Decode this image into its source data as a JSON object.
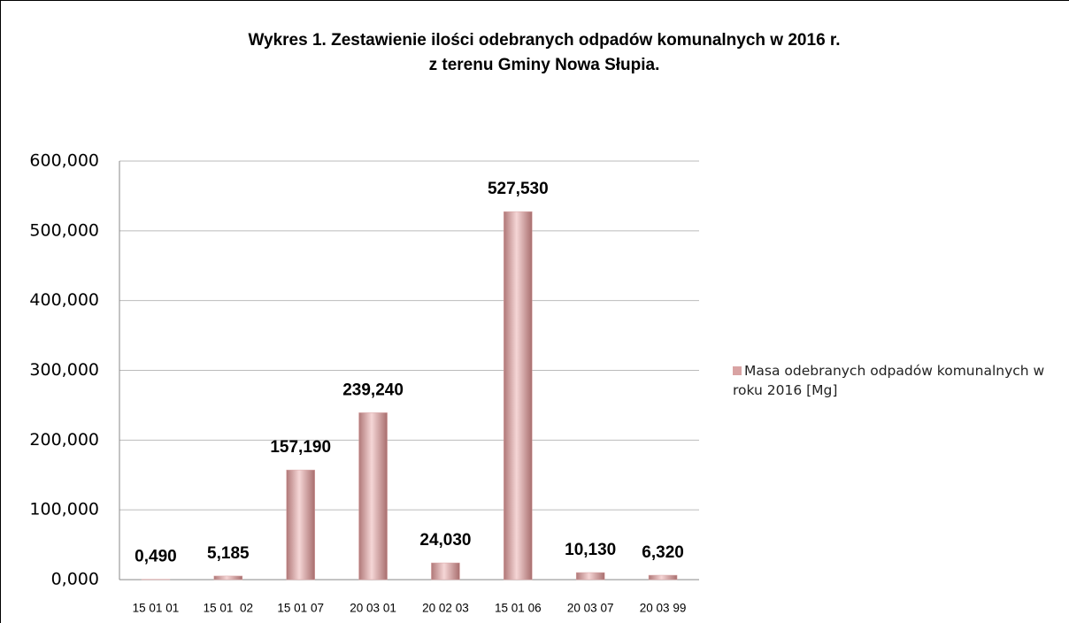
{
  "chart_data": {
    "type": "bar",
    "title": [
      "Wykres 1. Zestawienie ilości odebranych odpadów komunalnych w 2016 r.",
      "z terenu Gminy Nowa Słupia."
    ],
    "categories": [
      "15 01 01",
      "15 01  02",
      "15 01 07",
      "20 03 01",
      "20 02 03",
      "15 01 06",
      "20 03 07",
      "20 03 99"
    ],
    "series": [
      {
        "name": "Masa odebranych odpadów komunalnych w roku 2016 [Mg]",
        "color": "#d9a3a3",
        "values": [
          0.49,
          5.185,
          157.19,
          239.24,
          24.03,
          527.53,
          10.13,
          6.32
        ],
        "value_labels": [
          "0,490",
          "5,185",
          "157,190",
          "239,240",
          "24,030",
          "527,530",
          "10,130",
          "6,320"
        ]
      }
    ],
    "ylim": [
      0,
      600
    ],
    "yticks": [
      {
        "value": 0,
        "label": "0,000"
      },
      {
        "value": 100,
        "label": "100,000"
      },
      {
        "value": 200,
        "label": "200,000"
      },
      {
        "value": 300,
        "label": "300,000"
      },
      {
        "value": 400,
        "label": "400,000"
      },
      {
        "value": 500,
        "label": "500,000"
      },
      {
        "value": 600,
        "label": "600,000"
      }
    ],
    "grid": true,
    "legend": "right"
  }
}
